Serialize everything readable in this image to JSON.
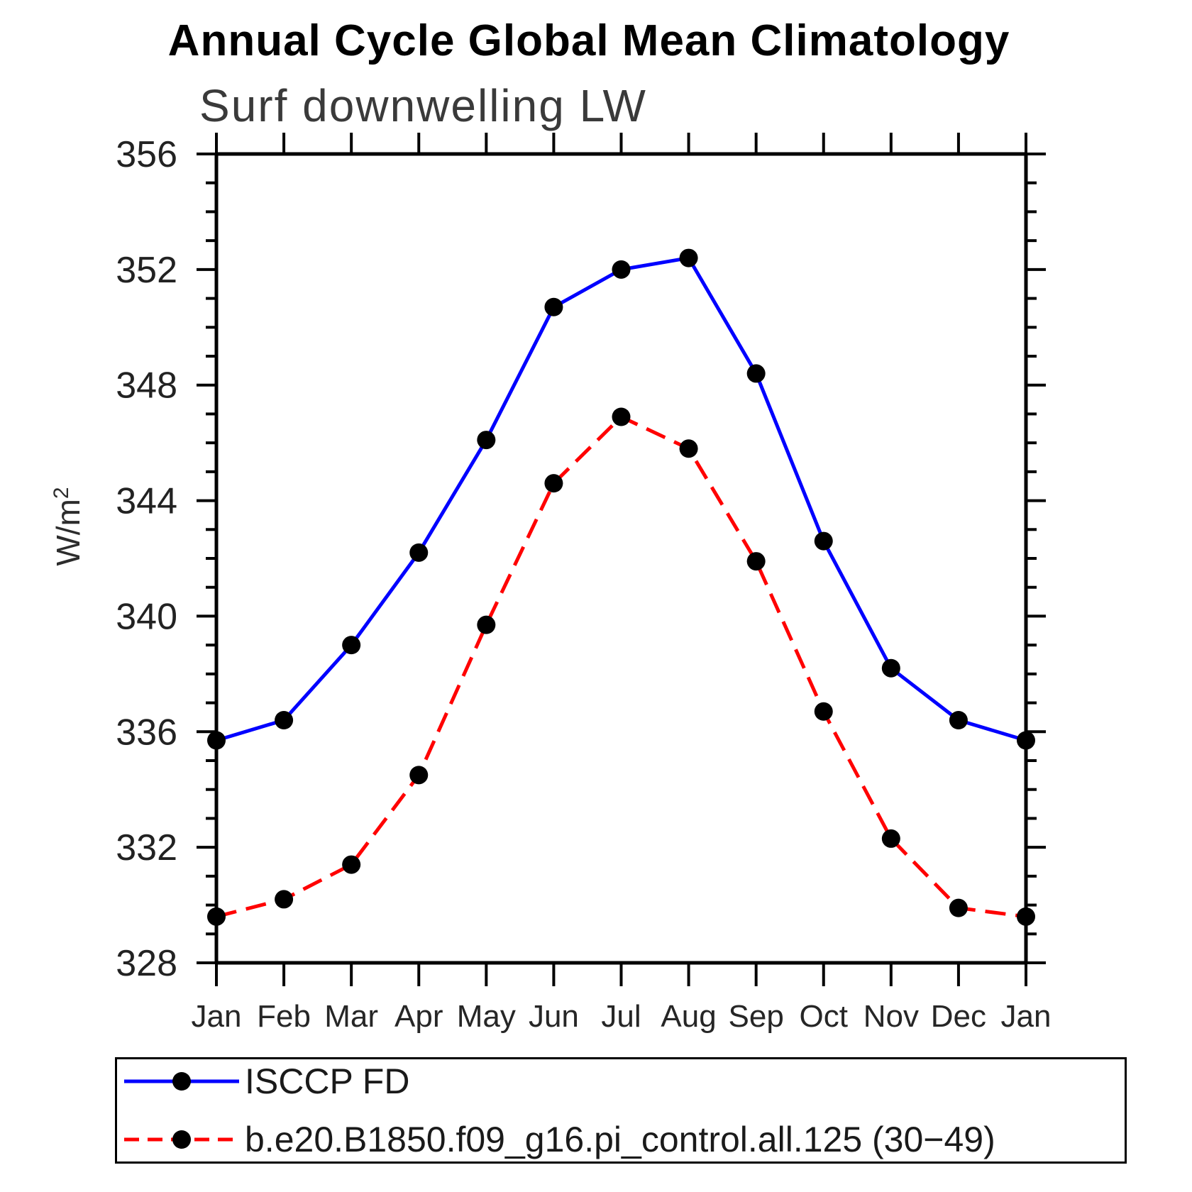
{
  "page": {
    "title": "Annual Cycle Global Mean Climatology",
    "subtitle": "Surf downwelling LW"
  },
  "chart_data": {
    "type": "line",
    "title": "Annual Cycle Global Mean Climatology",
    "subtitle": "Surf downwelling LW",
    "ylabel": "W/m²",
    "xlabel": "",
    "categories": [
      "Jan",
      "Feb",
      "Mar",
      "Apr",
      "May",
      "Jun",
      "Jul",
      "Aug",
      "Sep",
      "Oct",
      "Nov",
      "Dec",
      "Jan"
    ],
    "ylim": [
      328,
      356
    ],
    "ytick_step": 4,
    "yminor_step": 1,
    "y_tick_labels": [
      "328",
      "332",
      "336",
      "340",
      "344",
      "348",
      "352",
      "356"
    ],
    "grid": "off",
    "legend_position": "bottom-left-box",
    "frame_color": "#000000",
    "series": [
      {
        "name": "ISCCP FD",
        "color": "#0000ff",
        "style": "solid",
        "marker": "circle",
        "marker_color": "#000000",
        "values": [
          335.7,
          336.4,
          339.0,
          342.2,
          346.1,
          350.7,
          352.0,
          352.4,
          348.4,
          342.6,
          338.2,
          336.4,
          335.7
        ]
      },
      {
        "name": "b.e20.B1850.f09_g16.pi_control.all.125 (30−49)",
        "color": "#ff0000",
        "style": "dashed",
        "marker": "circle",
        "marker_color": "#000000",
        "values": [
          329.6,
          330.2,
          331.4,
          334.5,
          339.7,
          344.6,
          346.9,
          345.8,
          341.9,
          336.7,
          332.3,
          329.9,
          329.6
        ]
      }
    ]
  }
}
